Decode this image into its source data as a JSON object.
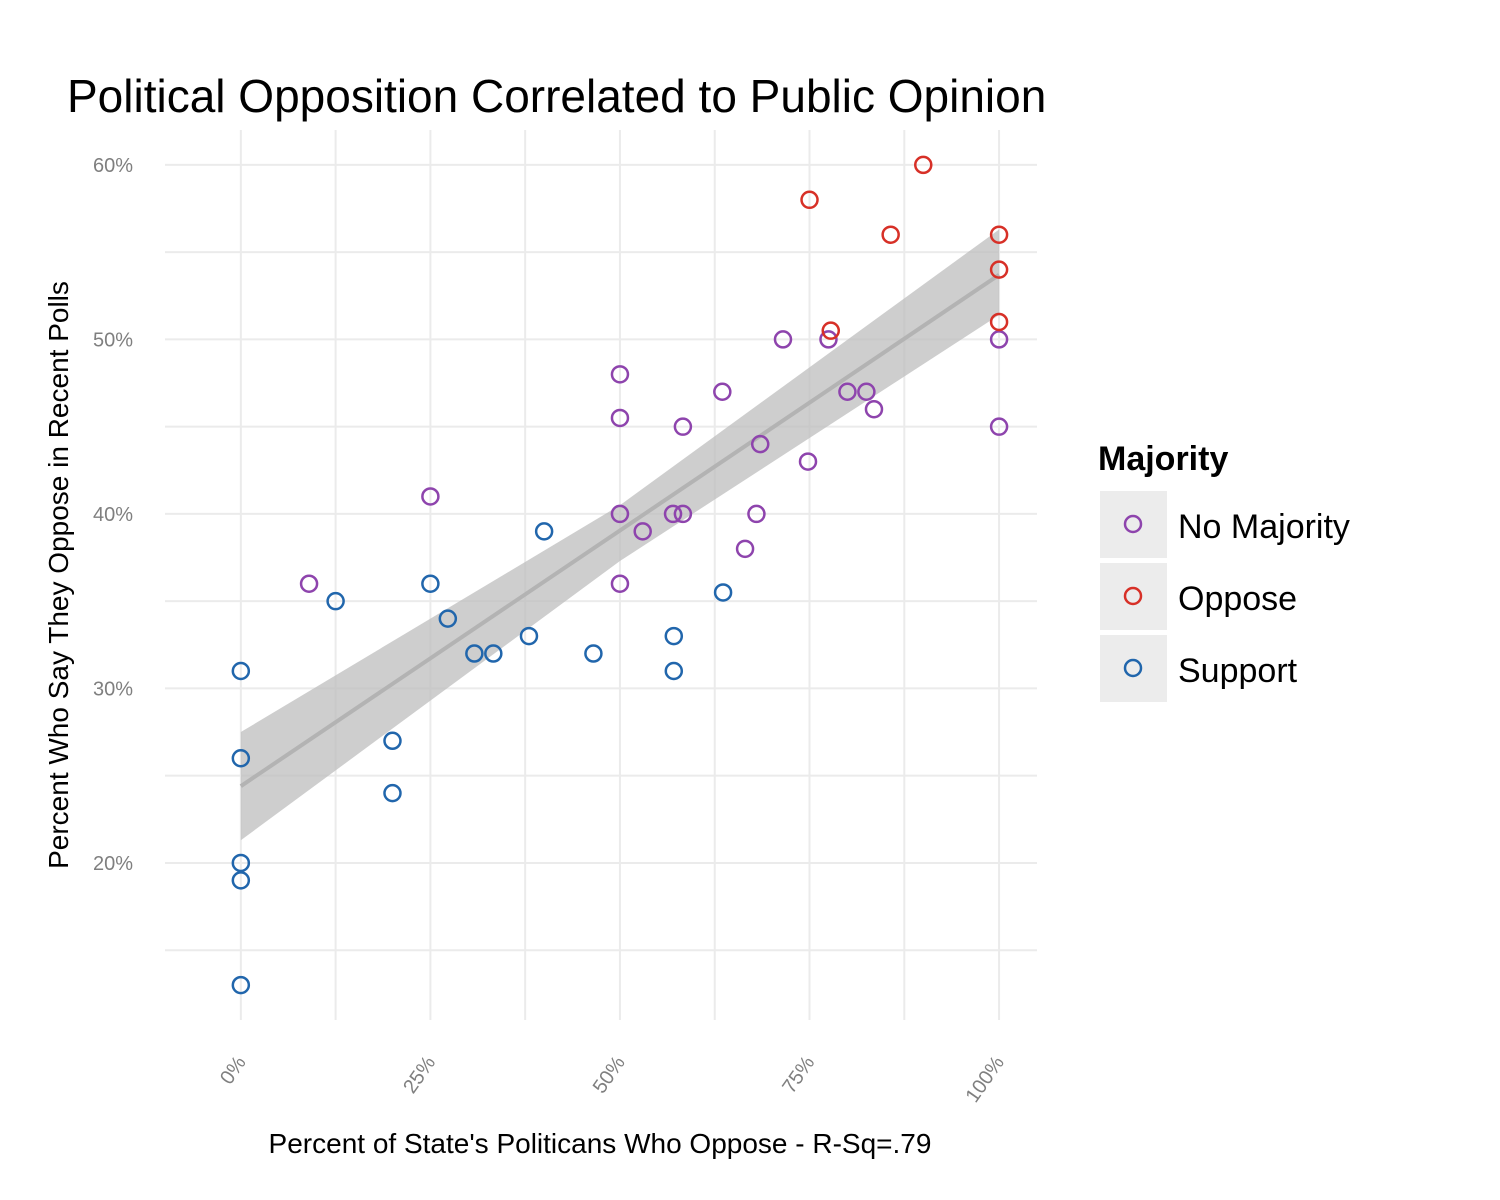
{
  "chart_data": {
    "type": "scatter",
    "title": "Political Opposition Correlated to Public Opinion",
    "xlabel": "Percent of State's Politicans Who Oppose - R-Sq=.79",
    "ylabel": "Percent Who Say They Oppose in Recent Polls",
    "xlim": [
      -0.1,
      1.05
    ],
    "ylim": [
      0.11,
      0.62
    ],
    "x_ticks": [
      0,
      0.25,
      0.5,
      0.75,
      1.0
    ],
    "x_tick_labels": [
      "0%",
      "25%",
      "50%",
      "75%",
      "100%"
    ],
    "y_ticks": [
      0.2,
      0.3,
      0.4,
      0.5,
      0.6
    ],
    "y_tick_labels": [
      "20%",
      "30%",
      "40%",
      "50%",
      "60%"
    ],
    "grid": true,
    "legend": {
      "title": "Majority",
      "placement": "right",
      "entries": [
        {
          "label": "No Majority",
          "color": "#8e44ad"
        },
        {
          "label": "Oppose",
          "color": "#d73027"
        },
        {
          "label": "Support",
          "color": "#2166ac"
        }
      ]
    },
    "series": [
      {
        "name": "No Majority",
        "color": "#8e44ad",
        "points": [
          [
            0.09,
            0.36
          ],
          [
            0.25,
            0.41
          ],
          [
            0.5,
            0.48
          ],
          [
            0.5,
            0.455
          ],
          [
            0.5,
            0.4
          ],
          [
            0.5,
            0.36
          ],
          [
            0.53,
            0.39
          ],
          [
            0.57,
            0.4
          ],
          [
            0.583,
            0.4
          ],
          [
            0.583,
            0.45
          ],
          [
            0.635,
            0.47
          ],
          [
            0.665,
            0.38
          ],
          [
            0.68,
            0.4
          ],
          [
            0.685,
            0.44
          ],
          [
            0.715,
            0.5
          ],
          [
            0.748,
            0.43
          ],
          [
            0.775,
            0.5
          ],
          [
            0.8,
            0.47
          ],
          [
            0.825,
            0.47
          ],
          [
            0.835,
            0.46
          ],
          [
            1.0,
            0.5
          ],
          [
            1.0,
            0.45
          ]
        ]
      },
      {
        "name": "Oppose",
        "color": "#d73027",
        "points": [
          [
            0.75,
            0.58
          ],
          [
            0.778,
            0.505
          ],
          [
            0.857,
            0.56
          ],
          [
            0.9,
            0.6
          ],
          [
            1.0,
            0.56
          ],
          [
            1.0,
            0.54
          ],
          [
            1.0,
            0.51
          ]
        ]
      },
      {
        "name": "Support",
        "color": "#2166ac",
        "points": [
          [
            0,
            0.31
          ],
          [
            0,
            0.26
          ],
          [
            0,
            0.2
          ],
          [
            0,
            0.19
          ],
          [
            0,
            0.13
          ],
          [
            0.125,
            0.35
          ],
          [
            0.2,
            0.27
          ],
          [
            0.2,
            0.24
          ],
          [
            0.25,
            0.36
          ],
          [
            0.273,
            0.34
          ],
          [
            0.308,
            0.32
          ],
          [
            0.333,
            0.32
          ],
          [
            0.38,
            0.33
          ],
          [
            0.4,
            0.39
          ],
          [
            0.465,
            0.32
          ],
          [
            0.571,
            0.33
          ],
          [
            0.571,
            0.31
          ],
          [
            0.636,
            0.355
          ]
        ]
      }
    ],
    "fit": {
      "type": "linear",
      "line": [
        [
          0,
          0.244
        ],
        [
          1.0,
          0.537
        ]
      ],
      "band_lower": [
        [
          0,
          0.213
        ],
        [
          0.5,
          0.373
        ],
        [
          1.0,
          0.514
        ]
      ],
      "band_upper": [
        [
          0,
          0.275
        ],
        [
          0.5,
          0.405
        ],
        [
          1.0,
          0.563
        ]
      ],
      "line_color": "#b3b3b3",
      "band_color": "#bdbdbd"
    }
  }
}
